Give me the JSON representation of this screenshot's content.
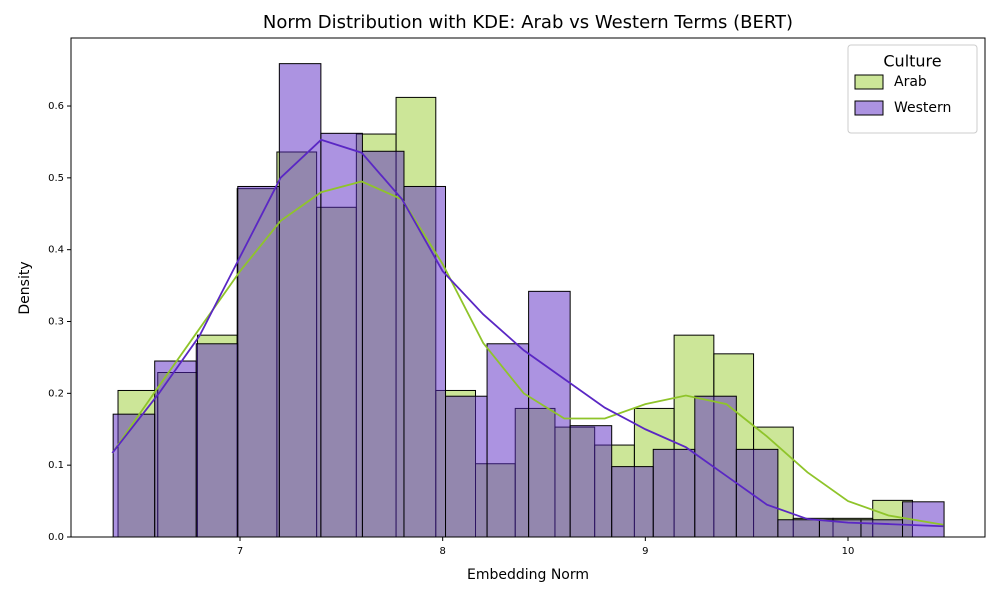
{
  "chart_data": {
    "type": "histogram",
    "title": "Norm Distribution with KDE: Arab vs Western Terms (BERT)",
    "x_label": "Embedding Norm",
    "y_label": "Density",
    "xlim": [
      6.166,
      10.676
    ],
    "ylim": [
      0,
      0.6947
    ],
    "xticks": [
      7,
      8,
      9,
      10
    ],
    "yticks": [
      {
        "value": 0,
        "label": "0.0"
      },
      {
        "value": 0.1,
        "label": "0.1"
      },
      {
        "value": 0.2,
        "label": "0.2"
      },
      {
        "value": 0.3,
        "label": "0.3"
      },
      {
        "value": 0.4,
        "label": "0.4"
      },
      {
        "value": 0.5,
        "label": "0.5"
      },
      {
        "value": 0.6,
        "label": "0.6"
      }
    ],
    "legend_title": "Culture",
    "legend": "upper right",
    "series": [
      {
        "name": "Arab",
        "color": "#9acd32",
        "line_color": "#8fc42a",
        "bins": [
          6.398,
          6.594,
          6.79,
          6.986,
          7.182,
          7.378,
          7.574,
          7.77,
          7.966,
          8.162,
          8.358,
          8.554,
          8.75,
          8.946,
          9.142,
          9.338,
          9.534,
          9.73,
          9.926,
          10.122,
          10.318
        ],
        "values": [
          0.204,
          0.229,
          0.281,
          0.485,
          0.536,
          0.459,
          0.561,
          0.612,
          0.204,
          0.102,
          0.179,
          0.153,
          0.128,
          0.179,
          0.281,
          0.255,
          0.153,
          0.026,
          0.026,
          0.051
        ],
        "kde_x": [
          6.37,
          6.6,
          6.8,
          7.0,
          7.2,
          7.4,
          7.6,
          7.8,
          8.0,
          8.2,
          8.4,
          8.6,
          8.8,
          9.0,
          9.2,
          9.4,
          9.6,
          9.8,
          10.0,
          10.2,
          10.47
        ],
        "kde_y": [
          0.117,
          0.21,
          0.29,
          0.37,
          0.44,
          0.48,
          0.495,
          0.47,
          0.38,
          0.27,
          0.2,
          0.165,
          0.165,
          0.185,
          0.197,
          0.185,
          0.14,
          0.09,
          0.05,
          0.03,
          0.017
        ]
      },
      {
        "name": "Western",
        "color": "#5a27c4",
        "line_color": "#5a27c4",
        "bins": [
          6.374,
          6.579,
          6.784,
          6.989,
          7.194,
          7.399,
          7.604,
          7.809,
          8.014,
          8.219,
          8.424,
          8.629,
          8.834,
          9.039,
          9.244,
          9.449,
          9.654,
          9.859,
          10.064,
          10.269,
          10.474
        ],
        "values": [
          0.171,
          0.245,
          0.269,
          0.488,
          0.659,
          0.562,
          0.537,
          0.488,
          0.196,
          0.269,
          0.342,
          0.155,
          0.098,
          0.122,
          0.196,
          0.122,
          0.024,
          0.024,
          0.024,
          0.049
        ],
        "kde_x": [
          6.37,
          6.6,
          6.8,
          7.0,
          7.2,
          7.4,
          7.6,
          7.8,
          8.0,
          8.2,
          8.4,
          8.6,
          8.8,
          9.0,
          9.2,
          9.4,
          9.6,
          9.8,
          10.0,
          10.2,
          10.47
        ],
        "kde_y": [
          0.117,
          0.2,
          0.28,
          0.39,
          0.5,
          0.553,
          0.535,
          0.47,
          0.37,
          0.31,
          0.26,
          0.22,
          0.18,
          0.15,
          0.125,
          0.085,
          0.045,
          0.025,
          0.02,
          0.018,
          0.015
        ]
      }
    ]
  }
}
